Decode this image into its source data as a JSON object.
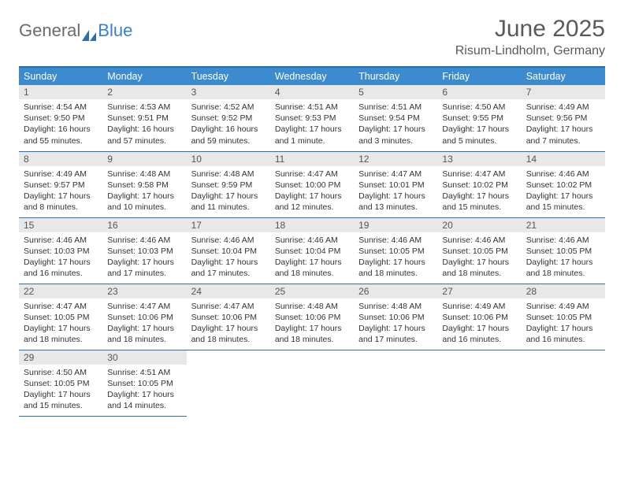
{
  "logo": {
    "word1": "General",
    "word2": "Blue"
  },
  "title": "June 2025",
  "location": "Risum-Lindholm, Germany",
  "colors": {
    "header_bg": "#3b8bce",
    "header_border": "#2f6fa8",
    "daynum_bg": "#e8e8e8",
    "text": "#333333",
    "logo_gray": "#6b6b6b",
    "logo_blue": "#3b7fc4",
    "title_color": "#5a5a5a"
  },
  "weekdays": [
    "Sunday",
    "Monday",
    "Tuesday",
    "Wednesday",
    "Thursday",
    "Friday",
    "Saturday"
  ],
  "days": [
    {
      "n": "1",
      "sunrise": "4:54 AM",
      "sunset": "9:50 PM",
      "daylight": "16 hours and 55 minutes."
    },
    {
      "n": "2",
      "sunrise": "4:53 AM",
      "sunset": "9:51 PM",
      "daylight": "16 hours and 57 minutes."
    },
    {
      "n": "3",
      "sunrise": "4:52 AM",
      "sunset": "9:52 PM",
      "daylight": "16 hours and 59 minutes."
    },
    {
      "n": "4",
      "sunrise": "4:51 AM",
      "sunset": "9:53 PM",
      "daylight": "17 hours and 1 minute."
    },
    {
      "n": "5",
      "sunrise": "4:51 AM",
      "sunset": "9:54 PM",
      "daylight": "17 hours and 3 minutes."
    },
    {
      "n": "6",
      "sunrise": "4:50 AM",
      "sunset": "9:55 PM",
      "daylight": "17 hours and 5 minutes."
    },
    {
      "n": "7",
      "sunrise": "4:49 AM",
      "sunset": "9:56 PM",
      "daylight": "17 hours and 7 minutes."
    },
    {
      "n": "8",
      "sunrise": "4:49 AM",
      "sunset": "9:57 PM",
      "daylight": "17 hours and 8 minutes."
    },
    {
      "n": "9",
      "sunrise": "4:48 AM",
      "sunset": "9:58 PM",
      "daylight": "17 hours and 10 minutes."
    },
    {
      "n": "10",
      "sunrise": "4:48 AM",
      "sunset": "9:59 PM",
      "daylight": "17 hours and 11 minutes."
    },
    {
      "n": "11",
      "sunrise": "4:47 AM",
      "sunset": "10:00 PM",
      "daylight": "17 hours and 12 minutes."
    },
    {
      "n": "12",
      "sunrise": "4:47 AM",
      "sunset": "10:01 PM",
      "daylight": "17 hours and 13 minutes."
    },
    {
      "n": "13",
      "sunrise": "4:47 AM",
      "sunset": "10:02 PM",
      "daylight": "17 hours and 15 minutes."
    },
    {
      "n": "14",
      "sunrise": "4:46 AM",
      "sunset": "10:02 PM",
      "daylight": "17 hours and 15 minutes."
    },
    {
      "n": "15",
      "sunrise": "4:46 AM",
      "sunset": "10:03 PM",
      "daylight": "17 hours and 16 minutes."
    },
    {
      "n": "16",
      "sunrise": "4:46 AM",
      "sunset": "10:03 PM",
      "daylight": "17 hours and 17 minutes."
    },
    {
      "n": "17",
      "sunrise": "4:46 AM",
      "sunset": "10:04 PM",
      "daylight": "17 hours and 17 minutes."
    },
    {
      "n": "18",
      "sunrise": "4:46 AM",
      "sunset": "10:04 PM",
      "daylight": "17 hours and 18 minutes."
    },
    {
      "n": "19",
      "sunrise": "4:46 AM",
      "sunset": "10:05 PM",
      "daylight": "17 hours and 18 minutes."
    },
    {
      "n": "20",
      "sunrise": "4:46 AM",
      "sunset": "10:05 PM",
      "daylight": "17 hours and 18 minutes."
    },
    {
      "n": "21",
      "sunrise": "4:46 AM",
      "sunset": "10:05 PM",
      "daylight": "17 hours and 18 minutes."
    },
    {
      "n": "22",
      "sunrise": "4:47 AM",
      "sunset": "10:05 PM",
      "daylight": "17 hours and 18 minutes."
    },
    {
      "n": "23",
      "sunrise": "4:47 AM",
      "sunset": "10:06 PM",
      "daylight": "17 hours and 18 minutes."
    },
    {
      "n": "24",
      "sunrise": "4:47 AM",
      "sunset": "10:06 PM",
      "daylight": "17 hours and 18 minutes."
    },
    {
      "n": "25",
      "sunrise": "4:48 AM",
      "sunset": "10:06 PM",
      "daylight": "17 hours and 18 minutes."
    },
    {
      "n": "26",
      "sunrise": "4:48 AM",
      "sunset": "10:06 PM",
      "daylight": "17 hours and 17 minutes."
    },
    {
      "n": "27",
      "sunrise": "4:49 AM",
      "sunset": "10:06 PM",
      "daylight": "17 hours and 16 minutes."
    },
    {
      "n": "28",
      "sunrise": "4:49 AM",
      "sunset": "10:05 PM",
      "daylight": "17 hours and 16 minutes."
    },
    {
      "n": "29",
      "sunrise": "4:50 AM",
      "sunset": "10:05 PM",
      "daylight": "17 hours and 15 minutes."
    },
    {
      "n": "30",
      "sunrise": "4:51 AM",
      "sunset": "10:05 PM",
      "daylight": "17 hours and 14 minutes."
    }
  ],
  "labels": {
    "sunrise": "Sunrise:",
    "sunset": "Sunset:",
    "daylight": "Daylight:"
  }
}
